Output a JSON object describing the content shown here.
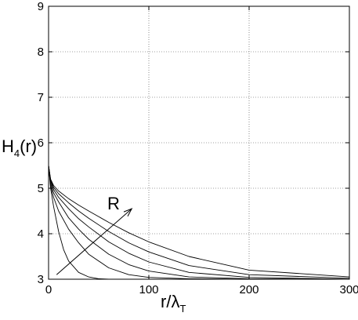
{
  "chart_data": {
    "type": "line",
    "title": "",
    "xlabel": {
      "base": "r/λ",
      "sub": "T"
    },
    "ylabel": {
      "base": "H",
      "sub": "4",
      "tail": "(r)"
    },
    "xlim": [
      0,
      300
    ],
    "ylim": [
      3,
      9
    ],
    "xticks": [
      "0",
      "100",
      "200",
      "300"
    ],
    "yticks": [
      "3",
      "4",
      "5",
      "6",
      "7",
      "8",
      "9"
    ],
    "grid": true,
    "annotation": {
      "text": "R",
      "arrow_from": [
        8,
        3.1
      ],
      "arrow_to": [
        83,
        4.55
      ]
    },
    "series": [
      {
        "x": [
          0,
          2,
          5,
          10,
          15,
          20,
          30,
          40,
          50,
          60,
          300
        ],
        "y": [
          5.5,
          5.0,
          4.6,
          4.05,
          3.65,
          3.4,
          3.15,
          3.05,
          3.01,
          3.0,
          3.0
        ]
      },
      {
        "x": [
          0,
          2,
          5,
          10,
          20,
          30,
          40,
          60,
          80,
          100,
          140,
          200,
          300
        ],
        "y": [
          5.5,
          5.05,
          4.8,
          4.5,
          4.1,
          3.8,
          3.55,
          3.25,
          3.1,
          3.04,
          3.01,
          3.0,
          3.0
        ]
      },
      {
        "x": [
          0,
          2,
          5,
          10,
          20,
          30,
          40,
          60,
          80,
          100,
          140,
          200,
          300
        ],
        "y": [
          5.5,
          5.1,
          4.9,
          4.7,
          4.35,
          4.1,
          3.88,
          3.55,
          3.32,
          3.18,
          3.05,
          3.01,
          3.0
        ]
      },
      {
        "x": [
          0,
          2,
          5,
          10,
          20,
          30,
          40,
          60,
          80,
          100,
          140,
          200,
          300
        ],
        "y": [
          5.5,
          5.15,
          4.97,
          4.8,
          4.55,
          4.33,
          4.15,
          3.82,
          3.57,
          3.38,
          3.15,
          3.04,
          3.0
        ]
      },
      {
        "x": [
          0,
          2,
          5,
          10,
          20,
          30,
          40,
          60,
          80,
          100,
          140,
          200,
          300
        ],
        "y": [
          5.5,
          5.18,
          5.02,
          4.88,
          4.68,
          4.5,
          4.34,
          4.05,
          3.8,
          3.6,
          3.3,
          3.1,
          3.02
        ]
      },
      {
        "x": [
          0,
          2,
          5,
          10,
          20,
          30,
          40,
          60,
          80,
          100,
          140,
          200,
          300
        ],
        "y": [
          5.5,
          5.2,
          5.06,
          4.94,
          4.77,
          4.63,
          4.5,
          4.25,
          4.02,
          3.82,
          3.5,
          3.2,
          3.05
        ]
      }
    ]
  }
}
